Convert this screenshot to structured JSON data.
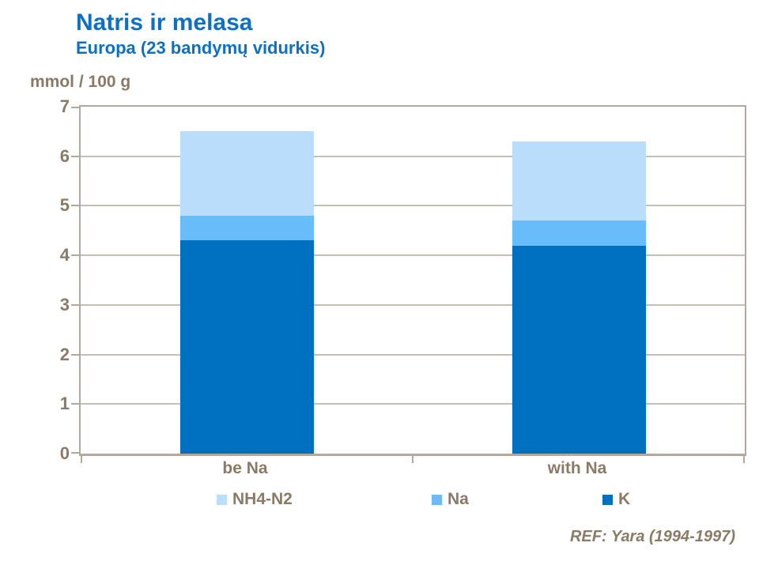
{
  "header": {
    "title": "Natris ir melasa",
    "subtitle": "Europa (23 bandymų vidurkis)"
  },
  "footer": {
    "reference": "REF: Yara (1994-1997)"
  },
  "colors": {
    "title_blue": "#0d70c1",
    "text_brown": "#8a7a66",
    "frame": "#b2a99e",
    "grid": "#c7beb4"
  },
  "chart_data": {
    "type": "bar",
    "stacked": true,
    "title": "Natris ir melasa",
    "subtitle": "Europa (23 bandymų vidurkis)",
    "ylabel": "mmol / 100 g",
    "xlabel": "",
    "ylim": [
      0,
      7
    ],
    "yticks": [
      0,
      1,
      2,
      3,
      4,
      5,
      6,
      7
    ],
    "grid": true,
    "legend_position": "bottom",
    "categories": [
      "be Na",
      "with Na"
    ],
    "series": [
      {
        "name": "NH4-N2",
        "color": "#b9ddfb",
        "values": [
          1.7,
          1.6
        ]
      },
      {
        "name": "Na",
        "color": "#69bcfa",
        "values": [
          0.5,
          0.5
        ]
      },
      {
        "name": "K",
        "color": "#0071c0",
        "values": [
          4.3,
          4.2
        ]
      }
    ],
    "stack_totals": [
      6.5,
      6.3
    ]
  }
}
